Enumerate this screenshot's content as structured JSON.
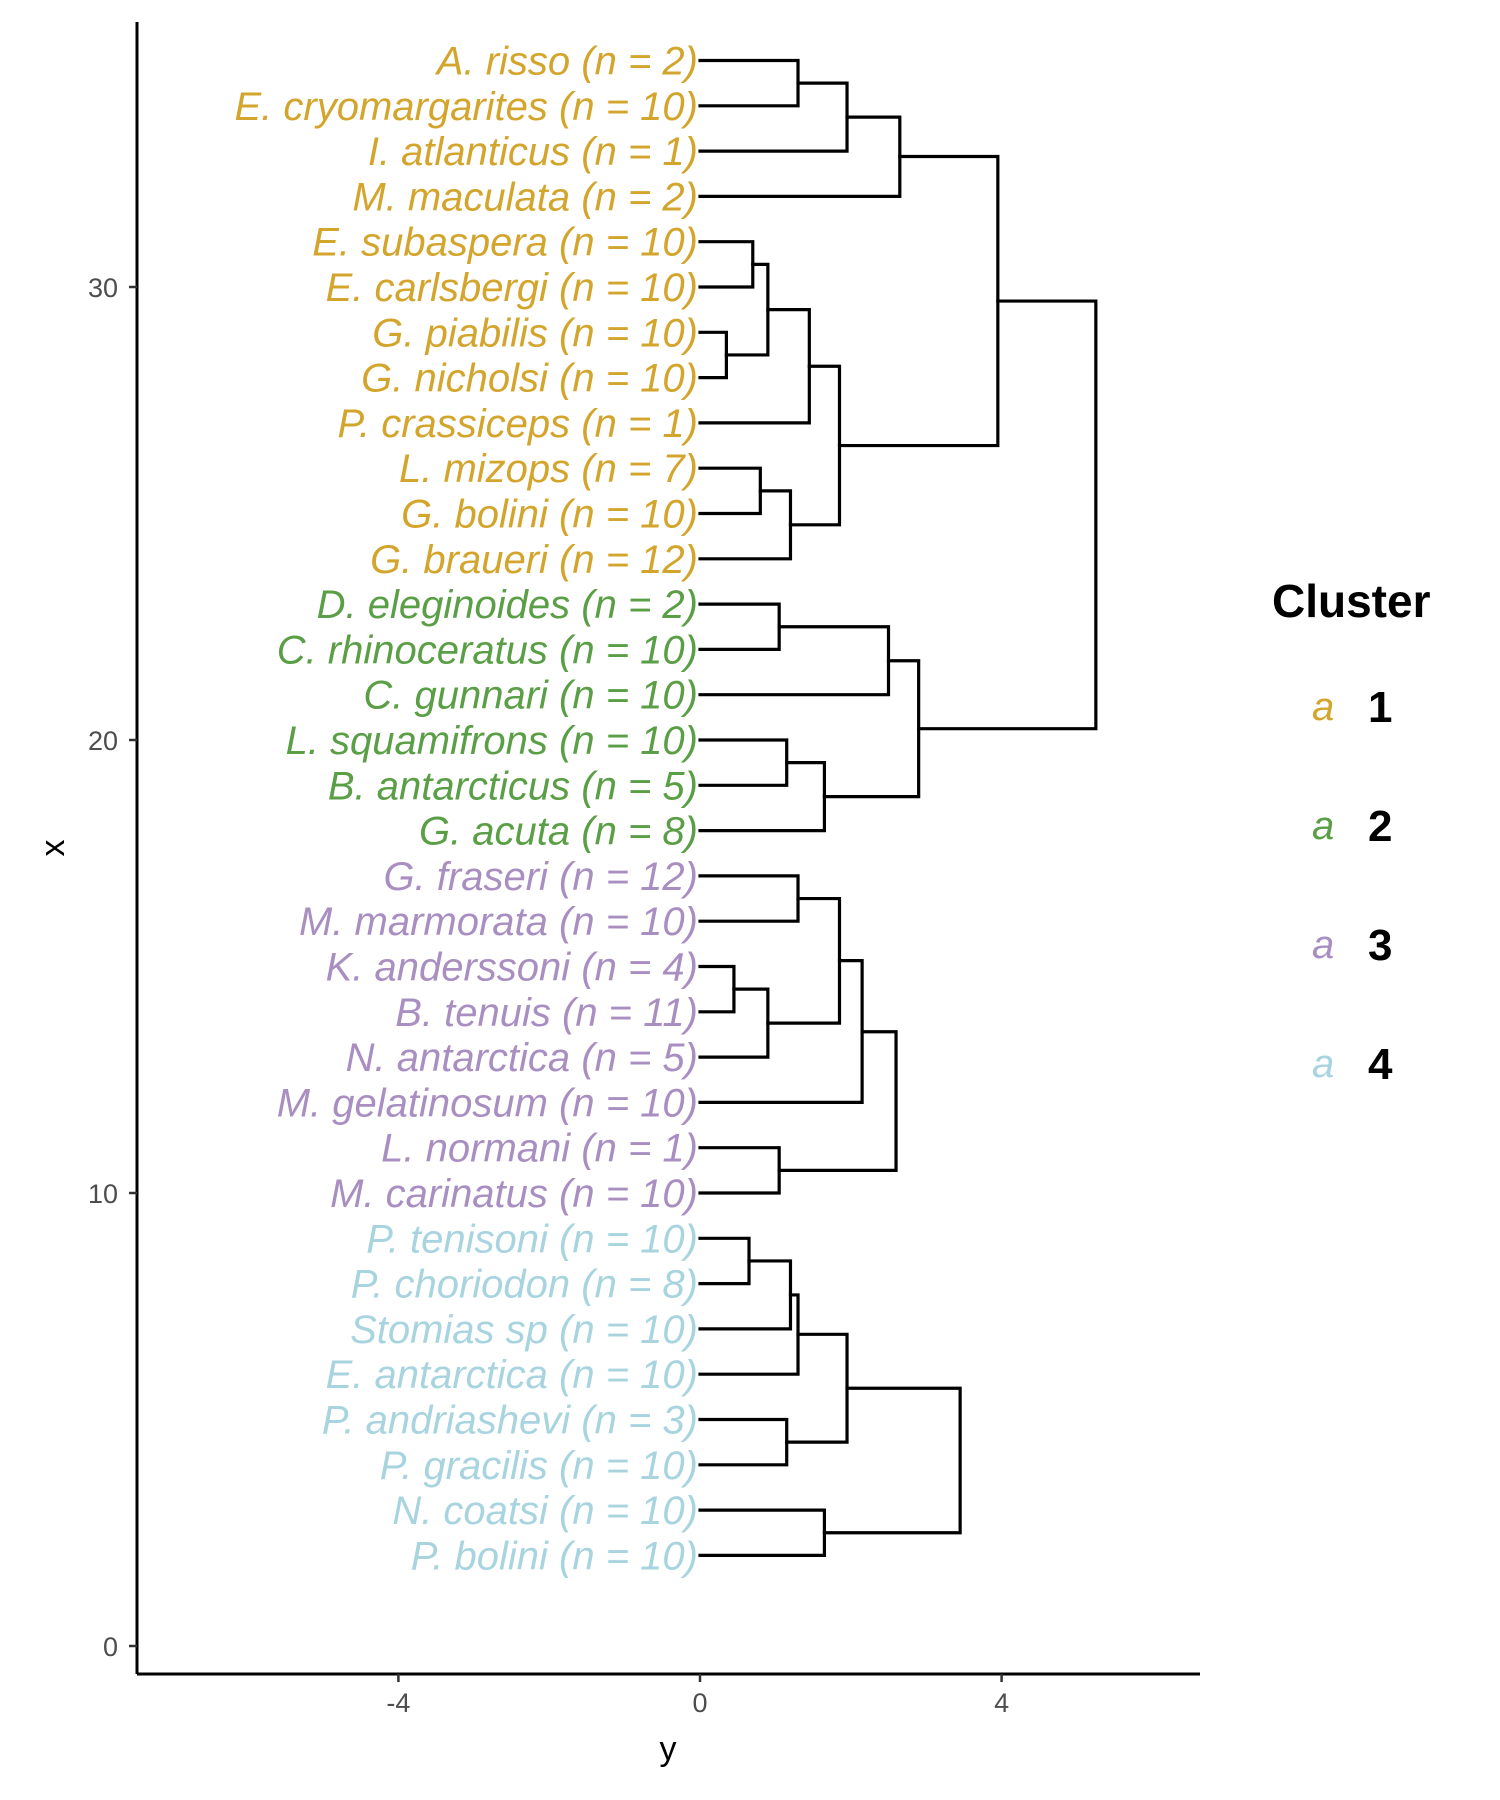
{
  "chart_data": {
    "type": "dendrogram",
    "xlabel": "y",
    "ylabel": "x",
    "xlim": [
      -7.5,
      6.7
    ],
    "ylim": [
      -0.6,
      35.6
    ],
    "x_ticks": [
      -4,
      0,
      4
    ],
    "y_ticks": [
      0,
      10,
      20,
      30
    ],
    "x_tick_labels": [
      "-4",
      "0",
      "4"
    ],
    "y_tick_labels": [
      "0",
      "10",
      "20",
      "30"
    ],
    "grid": false,
    "legend": {
      "title": "Cluster",
      "position": "right",
      "key_glyph": "a",
      "items": [
        {
          "label": "1",
          "color": "#D4A52C"
        },
        {
          "label": "2",
          "color": "#5A9E46"
        },
        {
          "label": "3",
          "color": "#A98FC1"
        },
        {
          "label": "4",
          "color": "#A8D4E0"
        }
      ]
    },
    "leaves": [
      {
        "label": "A. risso (n = 2)",
        "x": 35,
        "cluster": 1
      },
      {
        "label": "E. cryomargarites (n = 10)",
        "x": 34,
        "cluster": 1
      },
      {
        "label": "I. atlanticus (n = 1)",
        "x": 33,
        "cluster": 1
      },
      {
        "label": "M. maculata (n = 2)",
        "x": 32,
        "cluster": 1
      },
      {
        "label": "E. subaspera (n = 10)",
        "x": 31,
        "cluster": 1
      },
      {
        "label": "E. carlsbergi (n = 10)",
        "x": 30,
        "cluster": 1
      },
      {
        "label": "G. piabilis (n = 10)",
        "x": 29,
        "cluster": 1
      },
      {
        "label": "G. nicholsi (n = 10)",
        "x": 28,
        "cluster": 1
      },
      {
        "label": "P. crassiceps (n = 1)",
        "x": 27,
        "cluster": 1
      },
      {
        "label": "L. mizops (n = 7)",
        "x": 26,
        "cluster": 1
      },
      {
        "label": "G. bolini (n = 10)",
        "x": 25,
        "cluster": 1
      },
      {
        "label": "G. braueri (n = 12)",
        "x": 24,
        "cluster": 1
      },
      {
        "label": "D. eleginoides (n = 2)",
        "x": 23,
        "cluster": 2
      },
      {
        "label": "C. rhinoceratus (n = 10)",
        "x": 22,
        "cluster": 2
      },
      {
        "label": "C. gunnari (n = 10)",
        "x": 21,
        "cluster": 2
      },
      {
        "label": "L. squamifrons (n = 10)",
        "x": 20,
        "cluster": 2
      },
      {
        "label": "B. antarcticus (n = 5)",
        "x": 19,
        "cluster": 2
      },
      {
        "label": "G. acuta (n = 8)",
        "x": 18,
        "cluster": 2
      },
      {
        "label": "G. fraseri (n = 12)",
        "x": 17,
        "cluster": 3
      },
      {
        "label": "M. marmorata (n = 10)",
        "x": 16,
        "cluster": 3
      },
      {
        "label": "K. anderssoni (n = 4)",
        "x": 15,
        "cluster": 3
      },
      {
        "label": "B. tenuis (n = 11)",
        "x": 14,
        "cluster": 3
      },
      {
        "label": "N. antarctica (n = 5)",
        "x": 13,
        "cluster": 3
      },
      {
        "label": "M. gelatinosum (n = 10)",
        "x": 12,
        "cluster": 3
      },
      {
        "label": "L. normani (n = 1)",
        "x": 11,
        "cluster": 3
      },
      {
        "label": "M. carinatus (n = 10)",
        "x": 10,
        "cluster": 3
      },
      {
        "label": "P. tenisoni (n = 10)",
        "x": 9,
        "cluster": 4
      },
      {
        "label": "P. choriodon (n = 8)",
        "x": 8,
        "cluster": 4
      },
      {
        "label": "Stomias sp (n = 10)",
        "x": 7,
        "cluster": 4
      },
      {
        "label": "E. antarctica (n = 10)",
        "x": 6,
        "cluster": 4
      },
      {
        "label": "P. andriashevi (n = 3)",
        "x": 5,
        "cluster": 4
      },
      {
        "label": "P. gracilis (n = 10)",
        "x": 4,
        "cluster": 4
      },
      {
        "label": "N. coatsi (n = 10)",
        "x": 3,
        "cluster": 4
      },
      {
        "label": "P. bolini (n = 10)",
        "x": 2,
        "cluster": 4
      }
    ],
    "merges": [
      {
        "a": 35,
        "b": 34,
        "y": 1.3,
        "mid": 34.5
      },
      {
        "a": 34.5,
        "b": 33,
        "y": 1.95,
        "mid": 33.75
      },
      {
        "a": 33.75,
        "b": 32,
        "y": 2.65,
        "mid": 32.88
      },
      {
        "a": 31,
        "b": 30,
        "y": 0.7,
        "mid": 30.5
      },
      {
        "a": 29,
        "b": 28,
        "y": 0.35,
        "mid": 28.5
      },
      {
        "a": 30.5,
        "b": 28.5,
        "y": 0.9,
        "mid": 29.5
      },
      {
        "a": 29.5,
        "b": 27,
        "y": 1.45,
        "mid": 28.25
      },
      {
        "a": 26,
        "b": 25,
        "y": 0.8,
        "mid": 25.5
      },
      {
        "a": 25.5,
        "b": 24,
        "y": 1.2,
        "mid": 24.75
      },
      {
        "a": 28.25,
        "b": 24.75,
        "y": 1.85,
        "mid": 26.5
      },
      {
        "a": 32.88,
        "b": 26.5,
        "y": 3.95,
        "mid": 29.69
      },
      {
        "a": 23,
        "b": 22,
        "y": 1.05,
        "mid": 22.5
      },
      {
        "a": 22.5,
        "b": 21,
        "y": 2.5,
        "mid": 21.75
      },
      {
        "a": 20,
        "b": 19,
        "y": 1.15,
        "mid": 19.5
      },
      {
        "a": 19.5,
        "b": 18,
        "y": 1.65,
        "mid": 18.75
      },
      {
        "a": 21.75,
        "b": 18.75,
        "y": 2.9,
        "mid": 20.25
      },
      {
        "a": 29.69,
        "b": 20.25,
        "y": 5.25,
        "mid": 24.97
      },
      {
        "a": 17,
        "b": 16,
        "y": 1.3,
        "mid": 16.5
      },
      {
        "a": 15,
        "b": 14,
        "y": 0.45,
        "mid": 14.5
      },
      {
        "a": 14.5,
        "b": 13,
        "y": 0.9,
        "mid": 13.75
      },
      {
        "a": 16.5,
        "b": 13.75,
        "y": 1.85,
        "mid": 15.13
      },
      {
        "a": 15.13,
        "b": 12,
        "y": 2.15,
        "mid": 13.56
      },
      {
        "a": 11,
        "b": 10,
        "y": 1.05,
        "mid": 10.5
      },
      {
        "a": 13.56,
        "b": 10.5,
        "y": 2.6,
        "mid": 12.03
      },
      {
        "a": 9,
        "b": 8,
        "y": 0.65,
        "mid": 8.5
      },
      {
        "a": 8.5,
        "b": 7,
        "y": 1.2,
        "mid": 7.75
      },
      {
        "a": 7.75,
        "b": 6,
        "y": 1.3,
        "mid": 6.88
      },
      {
        "a": 5,
        "b": 4,
        "y": 1.15,
        "mid": 4.5
      },
      {
        "a": 6.88,
        "b": 4.5,
        "y": 1.95,
        "mid": 5.69
      },
      {
        "a": 3,
        "b": 2,
        "y": 1.65,
        "mid": 2.5
      },
      {
        "a": 5.69,
        "b": 2.5,
        "y": 3.45,
        "mid": 4.09
      }
    ]
  }
}
